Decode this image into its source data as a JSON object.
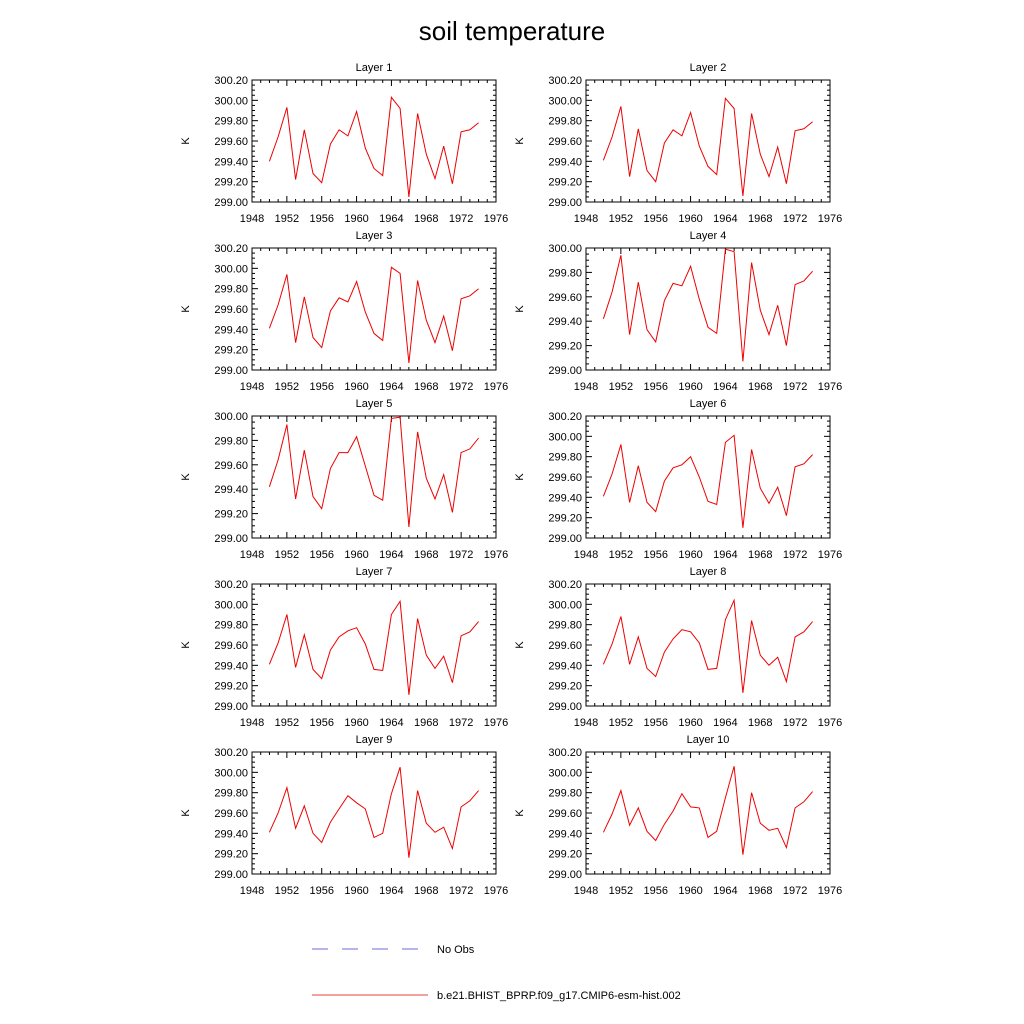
{
  "figure": {
    "title": "soil temperature"
  },
  "legend": {
    "items": [
      {
        "label": "No Obs",
        "color": "#6b6bd6",
        "dashed": true
      },
      {
        "label": "b.e21.BHIST_BPRP.f09_g17.CMIP6-esm-hist.002",
        "color": "#e8403a",
        "dashed": false
      }
    ]
  },
  "chart_data": [
    {
      "type": "line",
      "title": "Layer 1",
      "ylabel": "K",
      "xlim": [
        1948,
        1976
      ],
      "ylim": [
        299.0,
        300.2
      ],
      "xticks": [
        "1948",
        "1952",
        "1956",
        "1960",
        "1964",
        "1968",
        "1972",
        "1976"
      ],
      "yticks": [
        "299.00",
        "299.20",
        "299.40",
        "299.60",
        "299.80",
        "300.00",
        "300.20"
      ],
      "x": [
        1950,
        1951,
        1952,
        1953,
        1954,
        1955,
        1956,
        1957,
        1958,
        1959,
        1960,
        1961,
        1962,
        1963,
        1964,
        1965,
        1966,
        1967,
        1968,
        1969,
        1970,
        1971,
        1972,
        1973,
        1974
      ],
      "series": [
        {
          "color": "#ee0000",
          "values": [
            299.4,
            299.64,
            299.93,
            299.22,
            299.71,
            299.28,
            299.19,
            299.57,
            299.71,
            299.65,
            299.89,
            299.53,
            299.33,
            299.26,
            300.03,
            299.92,
            299.05,
            299.87,
            299.47,
            299.23,
            299.55,
            299.18,
            299.69,
            299.71,
            299.78
          ]
        }
      ]
    },
    {
      "type": "line",
      "title": "Layer 2",
      "ylabel": "K",
      "xlim": [
        1948,
        1976
      ],
      "ylim": [
        299.0,
        300.2
      ],
      "xticks": [
        "1948",
        "1952",
        "1956",
        "1960",
        "1964",
        "1968",
        "1972",
        "1976"
      ],
      "yticks": [
        "299.00",
        "299.20",
        "299.40",
        "299.60",
        "299.80",
        "300.00",
        "300.20"
      ],
      "x": [
        1950,
        1951,
        1952,
        1953,
        1954,
        1955,
        1956,
        1957,
        1958,
        1959,
        1960,
        1961,
        1962,
        1963,
        1964,
        1965,
        1966,
        1967,
        1968,
        1969,
        1970,
        1971,
        1972,
        1973,
        1974
      ],
      "series": [
        {
          "color": "#ee0000",
          "values": [
            299.41,
            299.64,
            299.94,
            299.25,
            299.72,
            299.31,
            299.2,
            299.58,
            299.71,
            299.65,
            299.88,
            299.55,
            299.35,
            299.27,
            300.02,
            299.92,
            299.06,
            299.87,
            299.47,
            299.25,
            299.54,
            299.18,
            299.7,
            299.72,
            299.79
          ]
        }
      ]
    },
    {
      "type": "line",
      "title": "Layer 3",
      "ylabel": "K",
      "xlim": [
        1948,
        1976
      ],
      "ylim": [
        299.0,
        300.2
      ],
      "xticks": [
        "1948",
        "1952",
        "1956",
        "1960",
        "1964",
        "1968",
        "1972",
        "1976"
      ],
      "yticks": [
        "299.00",
        "299.20",
        "299.40",
        "299.60",
        "299.80",
        "300.00",
        "300.20"
      ],
      "x": [
        1950,
        1951,
        1952,
        1953,
        1954,
        1955,
        1956,
        1957,
        1958,
        1959,
        1960,
        1961,
        1962,
        1963,
        1964,
        1965,
        1966,
        1967,
        1968,
        1969,
        1970,
        1971,
        1972,
        1973,
        1974
      ],
      "series": [
        {
          "color": "#ee0000",
          "values": [
            299.41,
            299.64,
            299.94,
            299.27,
            299.72,
            299.32,
            299.22,
            299.58,
            299.71,
            299.67,
            299.87,
            299.57,
            299.36,
            299.29,
            300.01,
            299.95,
            299.07,
            299.88,
            299.49,
            299.27,
            299.53,
            299.19,
            299.7,
            299.73,
            299.8
          ]
        }
      ]
    },
    {
      "type": "line",
      "title": "Layer 4",
      "ylabel": "K",
      "xlim": [
        1948,
        1976
      ],
      "ylim": [
        299.0,
        300.0
      ],
      "xticks": [
        "1948",
        "1952",
        "1956",
        "1960",
        "1964",
        "1968",
        "1972",
        "1976"
      ],
      "yticks": [
        "299.00",
        "299.20",
        "299.40",
        "299.60",
        "299.80",
        "300.00"
      ],
      "x": [
        1950,
        1951,
        1952,
        1953,
        1954,
        1955,
        1956,
        1957,
        1958,
        1959,
        1960,
        1961,
        1962,
        1963,
        1964,
        1965,
        1966,
        1967,
        1968,
        1969,
        1970,
        1971,
        1972,
        1973,
        1974
      ],
      "series": [
        {
          "color": "#ee0000",
          "values": [
            299.42,
            299.64,
            299.94,
            299.29,
            299.72,
            299.33,
            299.23,
            299.57,
            299.71,
            299.69,
            299.85,
            299.58,
            299.35,
            299.3,
            299.99,
            299.97,
            299.07,
            299.88,
            299.49,
            299.29,
            299.53,
            299.2,
            299.7,
            299.73,
            299.81
          ]
        }
      ]
    },
    {
      "type": "line",
      "title": "Layer 5",
      "ylabel": "K",
      "xlim": [
        1948,
        1976
      ],
      "ylim": [
        299.0,
        300.0
      ],
      "xticks": [
        "1948",
        "1952",
        "1956",
        "1960",
        "1964",
        "1968",
        "1972",
        "1976"
      ],
      "yticks": [
        "299.00",
        "299.20",
        "299.40",
        "299.60",
        "299.80",
        "300.00"
      ],
      "x": [
        1950,
        1951,
        1952,
        1953,
        1954,
        1955,
        1956,
        1957,
        1958,
        1959,
        1960,
        1961,
        1962,
        1963,
        1964,
        1965,
        1966,
        1967,
        1968,
        1969,
        1970,
        1971,
        1972,
        1973,
        1974
      ],
      "series": [
        {
          "color": "#ee0000",
          "values": [
            299.42,
            299.64,
            299.93,
            299.32,
            299.72,
            299.34,
            299.24,
            299.57,
            299.7,
            299.7,
            299.83,
            299.59,
            299.35,
            299.31,
            299.98,
            299.99,
            299.09,
            299.87,
            299.49,
            299.32,
            299.52,
            299.21,
            299.7,
            299.73,
            299.82
          ]
        }
      ]
    },
    {
      "type": "line",
      "title": "Layer 6",
      "ylabel": "K",
      "xlim": [
        1948,
        1976
      ],
      "ylim": [
        299.0,
        300.2
      ],
      "xticks": [
        "1948",
        "1952",
        "1956",
        "1960",
        "1964",
        "1968",
        "1972",
        "1976"
      ],
      "yticks": [
        "299.00",
        "299.20",
        "299.40",
        "299.60",
        "299.80",
        "300.00",
        "300.20"
      ],
      "x": [
        1950,
        1951,
        1952,
        1953,
        1954,
        1955,
        1956,
        1957,
        1958,
        1959,
        1960,
        1961,
        1962,
        1963,
        1964,
        1965,
        1966,
        1967,
        1968,
        1969,
        1970,
        1971,
        1972,
        1973,
        1974
      ],
      "series": [
        {
          "color": "#ee0000",
          "values": [
            299.41,
            299.63,
            299.92,
            299.35,
            299.71,
            299.35,
            299.26,
            299.56,
            299.69,
            299.72,
            299.8,
            299.6,
            299.36,
            299.33,
            299.94,
            300.01,
            299.1,
            299.87,
            299.49,
            299.34,
            299.5,
            299.22,
            299.7,
            299.73,
            299.82
          ]
        }
      ]
    },
    {
      "type": "line",
      "title": "Layer 7",
      "ylabel": "K",
      "xlim": [
        1948,
        1976
      ],
      "ylim": [
        299.0,
        300.2
      ],
      "xticks": [
        "1948",
        "1952",
        "1956",
        "1960",
        "1964",
        "1968",
        "1972",
        "1976"
      ],
      "yticks": [
        "299.00",
        "299.20",
        "299.40",
        "299.60",
        "299.80",
        "300.00",
        "300.20"
      ],
      "x": [
        1950,
        1951,
        1952,
        1953,
        1954,
        1955,
        1956,
        1957,
        1958,
        1959,
        1960,
        1961,
        1962,
        1963,
        1964,
        1965,
        1966,
        1967,
        1968,
        1969,
        1970,
        1971,
        1972,
        1973,
        1974
      ],
      "series": [
        {
          "color": "#ee0000",
          "values": [
            299.41,
            299.62,
            299.9,
            299.38,
            299.7,
            299.36,
            299.27,
            299.55,
            299.68,
            299.74,
            299.77,
            299.61,
            299.36,
            299.35,
            299.9,
            300.03,
            299.11,
            299.86,
            299.5,
            299.37,
            299.49,
            299.23,
            299.69,
            299.73,
            299.83
          ]
        }
      ]
    },
    {
      "type": "line",
      "title": "Layer 8",
      "ylabel": "K",
      "xlim": [
        1948,
        1976
      ],
      "ylim": [
        299.0,
        300.2
      ],
      "xticks": [
        "1948",
        "1952",
        "1956",
        "1960",
        "1964",
        "1968",
        "1972",
        "1976"
      ],
      "yticks": [
        "299.00",
        "299.20",
        "299.40",
        "299.60",
        "299.80",
        "300.00",
        "300.20"
      ],
      "x": [
        1950,
        1951,
        1952,
        1953,
        1954,
        1955,
        1956,
        1957,
        1958,
        1959,
        1960,
        1961,
        1962,
        1963,
        1964,
        1965,
        1966,
        1967,
        1968,
        1969,
        1970,
        1971,
        1972,
        1973,
        1974
      ],
      "series": [
        {
          "color": "#ee0000",
          "values": [
            299.41,
            299.61,
            299.88,
            299.41,
            299.68,
            299.37,
            299.29,
            299.53,
            299.66,
            299.75,
            299.73,
            299.62,
            299.36,
            299.37,
            299.85,
            300.04,
            299.13,
            299.84,
            299.5,
            299.4,
            299.48,
            299.24,
            299.68,
            299.73,
            299.83
          ]
        }
      ]
    },
    {
      "type": "line",
      "title": "Layer 9",
      "ylabel": "K",
      "xlim": [
        1948,
        1976
      ],
      "ylim": [
        299.0,
        300.2
      ],
      "xticks": [
        "1948",
        "1952",
        "1956",
        "1960",
        "1964",
        "1968",
        "1972",
        "1976"
      ],
      "yticks": [
        "299.00",
        "299.20",
        "299.40",
        "299.60",
        "299.80",
        "300.00",
        "300.20"
      ],
      "x": [
        1950,
        1951,
        1952,
        1953,
        1954,
        1955,
        1956,
        1957,
        1958,
        1959,
        1960,
        1961,
        1962,
        1963,
        1964,
        1965,
        1966,
        1967,
        1968,
        1969,
        1970,
        1971,
        1972,
        1973,
        1974
      ],
      "series": [
        {
          "color": "#ee0000",
          "values": [
            299.41,
            299.6,
            299.85,
            299.45,
            299.67,
            299.4,
            299.31,
            299.51,
            299.64,
            299.77,
            299.7,
            299.64,
            299.36,
            299.4,
            299.79,
            300.05,
            299.16,
            299.82,
            299.5,
            299.41,
            299.46,
            299.25,
            299.66,
            299.72,
            299.82
          ]
        }
      ]
    },
    {
      "type": "line",
      "title": "Layer 10",
      "ylabel": "K",
      "xlim": [
        1948,
        1976
      ],
      "ylim": [
        299.0,
        300.2
      ],
      "xticks": [
        "1948",
        "1952",
        "1956",
        "1960",
        "1964",
        "1968",
        "1972",
        "1976"
      ],
      "yticks": [
        "299.00",
        "299.20",
        "299.40",
        "299.60",
        "299.80",
        "300.00",
        "300.20"
      ],
      "x": [
        1950,
        1951,
        1952,
        1953,
        1954,
        1955,
        1956,
        1957,
        1958,
        1959,
        1960,
        1961,
        1962,
        1963,
        1964,
        1965,
        1966,
        1967,
        1968,
        1969,
        1970,
        1971,
        1972,
        1973,
        1974
      ],
      "series": [
        {
          "color": "#ee0000",
          "values": [
            299.41,
            299.59,
            299.82,
            299.48,
            299.65,
            299.42,
            299.33,
            299.49,
            299.62,
            299.79,
            299.66,
            299.65,
            299.36,
            299.42,
            299.75,
            300.06,
            299.19,
            299.8,
            299.5,
            299.43,
            299.45,
            299.26,
            299.65,
            299.71,
            299.81
          ]
        }
      ]
    }
  ]
}
